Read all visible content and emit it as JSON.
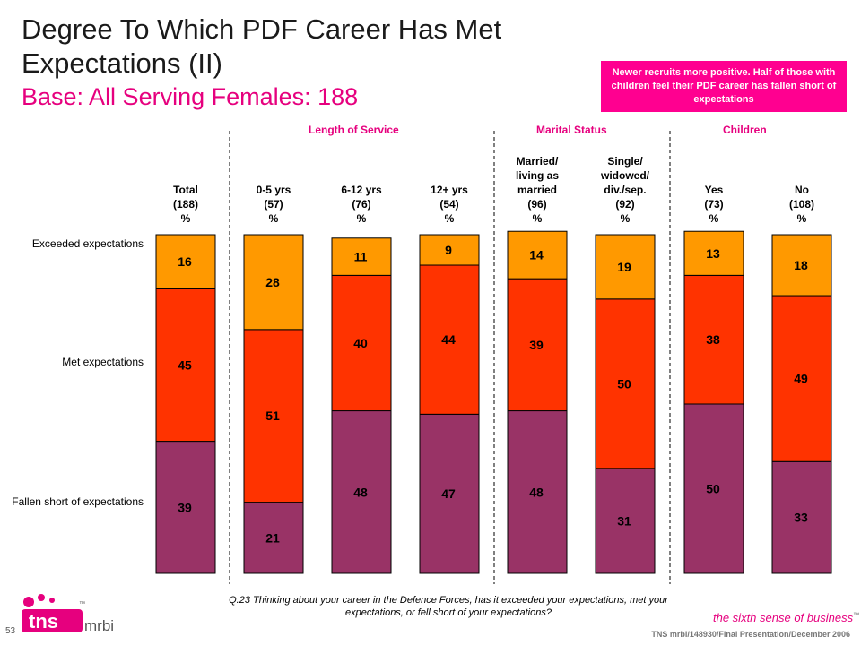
{
  "title_line1": "Degree To Which PDF Career Has Met",
  "title_line2": "Expectations (II)",
  "subtitle": "Base:  All Serving Females:  188",
  "callout": "Newer recruits more positive.  Half of those with children feel their PDF career has fallen short of expectations",
  "groups": [
    "Length of Service",
    "Marital Status",
    "Children"
  ],
  "row_labels": [
    "Exceeded expectations",
    "Met expectations",
    "Fallen short of expectations"
  ],
  "footnote": "Q.23  Thinking about your career in the Defence Forces, has it exceeded your expectations, met your expectations, or fell short of your expectations?",
  "page_number": "53",
  "credit": "TNS mrbi/148930/Final Presentation/December 2006",
  "tagline": "the sixth sense of business",
  "logo": {
    "text": "tns",
    "sub": "mrbi",
    "tm": "™"
  },
  "colors": {
    "exceeded": "#ff9900",
    "met": "#ff3300",
    "fallen": "#993366",
    "accent": "#e6007e"
  },
  "chart_data": {
    "type": "bar",
    "stacked": true,
    "categories": [
      [
        "Total",
        "(188)",
        "%"
      ],
      [
        "0-5 yrs",
        "(57)",
        "%"
      ],
      [
        "6-12 yrs",
        "(76)",
        "%"
      ],
      [
        "12+ yrs",
        "(54)",
        "%"
      ],
      [
        "Married/",
        "living as",
        "married",
        "(96)",
        "%"
      ],
      [
        "Single/",
        "widowed/",
        "div./sep.",
        "(92)",
        "%"
      ],
      [
        "Yes",
        "(73)",
        "%"
      ],
      [
        "No",
        "(108)",
        "%"
      ]
    ],
    "series": [
      {
        "key": "fallen",
        "values": [
          39,
          21,
          48,
          47,
          48,
          31,
          50,
          33
        ]
      },
      {
        "key": "met",
        "values": [
          45,
          51,
          40,
          44,
          39,
          50,
          38,
          49
        ]
      },
      {
        "key": "exceeded",
        "values": [
          16,
          28,
          11,
          9,
          14,
          19,
          13,
          18
        ]
      }
    ],
    "ylim": [
      0,
      100
    ]
  }
}
